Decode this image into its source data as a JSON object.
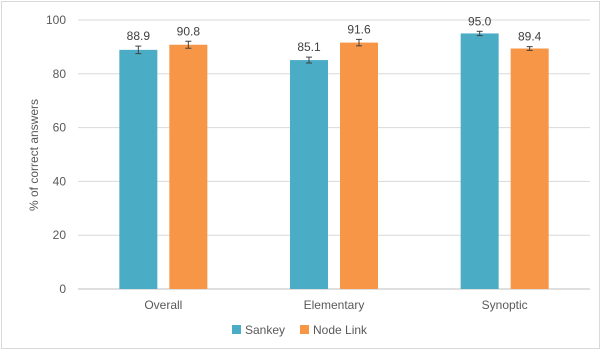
{
  "chart_data": {
    "type": "bar",
    "categories": [
      "Overall",
      "Elementary",
      "Synoptic"
    ],
    "series": [
      {
        "name": "Sankey",
        "color": "#4bacc6",
        "values": [
          88.9,
          85.1,
          95.0
        ],
        "labels": [
          "88.9",
          "85.1",
          "95.0"
        ],
        "errors": [
          1.4,
          1.1,
          0.8
        ]
      },
      {
        "name": "Node Link",
        "color": "#f79646",
        "values": [
          90.8,
          91.6,
          89.4
        ],
        "labels": [
          "90.8",
          "91.6",
          "89.4"
        ],
        "errors": [
          1.3,
          1.2,
          0.7
        ]
      }
    ],
    "title": "",
    "xlabel": "",
    "ylabel": "% of correct answers",
    "ylim": [
      0,
      100
    ],
    "yticks": [
      0,
      20,
      40,
      60,
      80,
      100
    ],
    "grid": true,
    "legend_position": "bottom"
  }
}
